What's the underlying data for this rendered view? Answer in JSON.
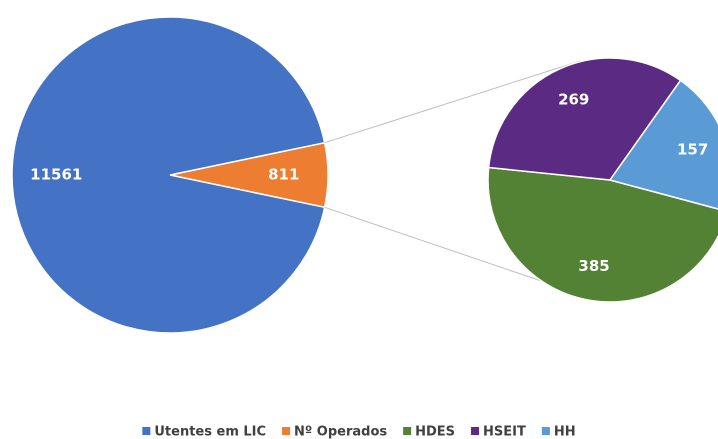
{
  "chart_data": {
    "type": "pieofpie",
    "primary": {
      "categories": [
        "Utentes em LIC",
        "Nº Operados"
      ],
      "values": [
        11561,
        811
      ],
      "colors": [
        "#4472c4",
        "#ed7d31"
      ]
    },
    "secondary": {
      "categories": [
        "HDES",
        "HSEIT",
        "HH"
      ],
      "values": [
        385,
        269,
        157
      ],
      "colors": [
        "#548235",
        "#5b2a82",
        "#5b9bd5"
      ]
    },
    "legend": "bottom"
  }
}
